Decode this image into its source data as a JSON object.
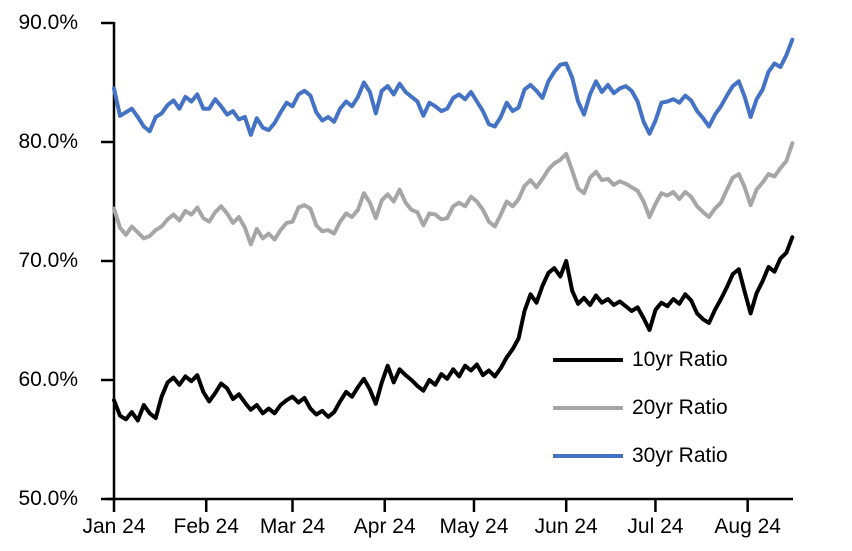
{
  "chart_data": {
    "type": "line",
    "title": "",
    "xlabel": "",
    "ylabel": "",
    "ylim": [
      50,
      90
    ],
    "grid": false,
    "background_color": "#FFFFFF",
    "axis_color": "#000000",
    "legend_position": "inside-lower-right",
    "y_ticks": [
      "90.0%",
      "80.0%",
      "70.0%",
      "60.0%",
      "50.0%"
    ],
    "y_tick_values": [
      90,
      80,
      70,
      60,
      50
    ],
    "x_ticks": [
      "Jan 24",
      "Feb 24",
      "Mar 24",
      "Apr 24",
      "May 24",
      "Jun 24",
      "Jul 24",
      "Aug 24"
    ],
    "x_range": "daily data, Jan 1 2024 to ~Aug 16 2024, values sampled every 2 days",
    "series": [
      {
        "name": "10yr Ratio",
        "color": "#000000",
        "values": [
          58.3,
          57.0,
          56.7,
          57.3,
          56.6,
          57.9,
          57.2,
          56.8,
          58.6,
          59.8,
          60.2,
          59.6,
          60.3,
          59.9,
          60.4,
          59.0,
          58.2,
          58.9,
          59.7,
          59.3,
          58.4,
          58.8,
          58.1,
          57.5,
          57.9,
          57.2,
          57.6,
          57.2,
          57.9,
          58.3,
          58.6,
          58.1,
          58.5,
          57.6,
          57.1,
          57.4,
          56.9,
          57.3,
          58.2,
          59.0,
          58.6,
          59.4,
          60.1,
          59.2,
          58.0,
          59.8,
          61.2,
          59.8,
          60.9,
          60.4,
          60.0,
          59.5,
          59.1,
          60.0,
          59.6,
          60.5,
          60.1,
          60.9,
          60.3,
          61.2,
          60.8,
          61.3,
          60.4,
          60.8,
          60.3,
          61.0,
          61.9,
          62.6,
          63.5,
          65.8,
          67.2,
          66.5,
          67.9,
          69.0,
          69.4,
          68.7,
          70.0,
          67.5,
          66.4,
          66.9,
          66.3,
          67.1,
          66.5,
          66.8,
          66.3,
          66.6,
          66.2,
          65.8,
          66.1,
          65.2,
          64.2,
          65.9,
          66.5,
          66.2,
          66.8,
          66.4,
          67.2,
          66.7,
          65.6,
          65.1,
          64.8,
          65.9,
          66.8,
          67.8,
          68.9,
          69.3,
          67.4,
          65.6,
          67.3,
          68.3,
          69.5,
          69.1,
          70.2,
          70.7,
          72.0
        ]
      },
      {
        "name": "20yr Ratio",
        "color": "#A6A6A6",
        "values": [
          74.4,
          72.8,
          72.2,
          72.9,
          72.4,
          71.9,
          72.1,
          72.6,
          72.9,
          73.5,
          73.9,
          73.4,
          74.2,
          73.9,
          74.5,
          73.6,
          73.3,
          74.1,
          74.6,
          74.0,
          73.2,
          73.7,
          72.8,
          71.4,
          72.7,
          71.9,
          72.3,
          71.8,
          72.6,
          73.2,
          73.3,
          74.5,
          74.7,
          74.4,
          73.0,
          72.5,
          72.6,
          72.3,
          73.3,
          74.0,
          73.7,
          74.3,
          75.7,
          74.9,
          73.6,
          75.1,
          75.6,
          75.0,
          76.0,
          74.9,
          74.3,
          74.1,
          73.0,
          74.0,
          73.9,
          73.5,
          73.6,
          74.6,
          74.9,
          74.6,
          75.4,
          75.0,
          74.3,
          73.3,
          72.9,
          73.9,
          75.0,
          74.6,
          75.2,
          76.3,
          76.8,
          76.2,
          76.9,
          77.7,
          78.2,
          78.5,
          79.0,
          77.6,
          76.1,
          75.7,
          77.0,
          77.5,
          76.8,
          76.9,
          76.4,
          76.7,
          76.5,
          76.2,
          75.9,
          75.0,
          73.7,
          74.8,
          75.7,
          75.5,
          75.8,
          75.2,
          75.8,
          75.4,
          74.6,
          74.1,
          73.7,
          74.4,
          74.9,
          76.0,
          77.0,
          77.3,
          76.2,
          74.7,
          76.0,
          76.6,
          77.3,
          77.1,
          77.8,
          78.4,
          79.9
        ]
      },
      {
        "name": "30yr Ratio",
        "color": "#4472C4",
        "values": [
          84.5,
          82.2,
          82.5,
          82.8,
          82.1,
          81.3,
          80.9,
          82.1,
          82.4,
          83.1,
          83.5,
          82.8,
          83.8,
          83.4,
          84.0,
          82.8,
          82.8,
          83.6,
          83.0,
          82.3,
          82.6,
          81.9,
          82.1,
          80.6,
          82.0,
          81.2,
          81.0,
          81.6,
          82.5,
          83.3,
          83.0,
          84.0,
          84.3,
          83.9,
          82.5,
          81.8,
          82.1,
          81.7,
          82.8,
          83.4,
          83.0,
          83.8,
          85.0,
          84.2,
          82.4,
          84.3,
          84.7,
          84.0,
          84.9,
          84.2,
          83.8,
          83.4,
          82.2,
          83.3,
          83.0,
          82.6,
          82.8,
          83.7,
          84.0,
          83.6,
          84.2,
          83.4,
          82.6,
          81.5,
          81.3,
          82.1,
          83.3,
          82.6,
          82.9,
          84.4,
          84.8,
          84.3,
          83.7,
          85.1,
          85.9,
          86.5,
          86.6,
          85.4,
          83.4,
          82.3,
          84.0,
          85.1,
          84.2,
          84.8,
          84.1,
          84.5,
          84.7,
          84.3,
          83.4,
          81.7,
          80.7,
          81.8,
          83.3,
          83.4,
          83.6,
          83.3,
          83.9,
          83.5,
          82.6,
          82.0,
          81.3,
          82.3,
          83.0,
          83.9,
          84.7,
          85.1,
          83.8,
          82.1,
          83.6,
          84.4,
          85.9,
          86.6,
          86.3,
          87.3,
          88.6
        ]
      }
    ]
  }
}
